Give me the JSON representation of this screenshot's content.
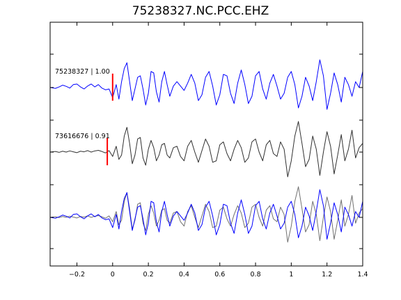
{
  "chart_data": {
    "type": "line",
    "title": "75238327.NC.PCC.EHZ",
    "xlabel": "",
    "ylabel": "",
    "xlim": [
      -0.35,
      1.4
    ],
    "ylim": [
      -3,
      3
    ],
    "grid": false,
    "x_ticks": [
      -0.2,
      0,
      0.2,
      0.4,
      0.6,
      0.8,
      1,
      1.2,
      1.4
    ],
    "x_tick_labels": [
      "−0.2",
      "0",
      "0.2",
      "0.4",
      "0.6",
      "0.8",
      "1",
      "1.2",
      "1.4"
    ],
    "trace_labels": [
      "75238327 | 1.00",
      "73616676 | 0.91"
    ],
    "pick_markers": [
      {
        "trace": 0,
        "x": 0.0,
        "color": "#ff0000"
      },
      {
        "trace": 1,
        "x": -0.03,
        "color": "#ff0000"
      }
    ],
    "series": [
      {
        "trace": 0,
        "color": "#0000ff",
        "x": [
          -0.35,
          -0.32,
          -0.3,
          -0.28,
          -0.26,
          -0.24,
          -0.22,
          -0.2,
          -0.18,
          -0.16,
          -0.14,
          -0.12,
          -0.1,
          -0.08,
          -0.06,
          -0.04,
          -0.02,
          0.0,
          0.02,
          0.035,
          0.05,
          0.065,
          0.08,
          0.095,
          0.11,
          0.125,
          0.14,
          0.155,
          0.17,
          0.185,
          0.2,
          0.215,
          0.23,
          0.245,
          0.26,
          0.275,
          0.29,
          0.305,
          0.32,
          0.34,
          0.36,
          0.38,
          0.4,
          0.42,
          0.44,
          0.46,
          0.48,
          0.5,
          0.52,
          0.54,
          0.56,
          0.58,
          0.6,
          0.62,
          0.64,
          0.66,
          0.68,
          0.7,
          0.72,
          0.74,
          0.76,
          0.78,
          0.8,
          0.82,
          0.84,
          0.86,
          0.88,
          0.9,
          0.92,
          0.94,
          0.96,
          0.98,
          1.0,
          1.02,
          1.04,
          1.06,
          1.08,
          1.1,
          1.12,
          1.14,
          1.16,
          1.18,
          1.2,
          1.22,
          1.24,
          1.26,
          1.28,
          1.3,
          1.32,
          1.34,
          1.36,
          1.38,
          1.4
        ],
        "y": [
          0,
          -0.03,
          0.02,
          0.08,
          0.04,
          -0.02,
          0.1,
          0.12,
          0.02,
          -0.05,
          0.05,
          0.12,
          0.02,
          0.1,
          -0.02,
          -0.08,
          -0.05,
          -0.35,
          0.1,
          -0.4,
          0.2,
          0.65,
          0.85,
          0.2,
          -0.45,
          -0.05,
          0.35,
          0.4,
          -0.05,
          -0.6,
          -0.2,
          0.55,
          0.5,
          -0.15,
          -0.5,
          0.2,
          0.55,
          0.1,
          -0.3,
          0.05,
          0.2,
          0.05,
          -0.1,
          0.15,
          0.45,
          0.15,
          -0.45,
          -0.25,
          0.35,
          0.55,
          0.05,
          -0.6,
          -0.25,
          0.45,
          0.4,
          -0.2,
          -0.55,
          0.15,
          0.6,
          0.1,
          -0.55,
          -0.3,
          0.4,
          0.55,
          -0.05,
          -0.4,
          0.15,
          0.45,
          0.05,
          -0.4,
          -0.2,
          0.35,
          0.55,
          0.1,
          -0.7,
          -0.3,
          0.35,
          0.05,
          -0.45,
          0.2,
          0.95,
          0.4,
          -0.75,
          -0.2,
          0.5,
          0.1,
          -0.5,
          0.35,
          0.1,
          -0.3,
          0.2,
          0.0,
          0.55
        ]
      },
      {
        "trace": 1,
        "color": "#303030",
        "x": [
          -0.35,
          -0.32,
          -0.3,
          -0.28,
          -0.26,
          -0.24,
          -0.22,
          -0.2,
          -0.18,
          -0.16,
          -0.14,
          -0.12,
          -0.1,
          -0.08,
          -0.06,
          -0.04,
          -0.02,
          0.0,
          0.02,
          0.035,
          0.05,
          0.065,
          0.08,
          0.095,
          0.11,
          0.125,
          0.14,
          0.155,
          0.17,
          0.185,
          0.2,
          0.215,
          0.23,
          0.245,
          0.26,
          0.275,
          0.29,
          0.305,
          0.32,
          0.34,
          0.36,
          0.38,
          0.4,
          0.42,
          0.44,
          0.46,
          0.48,
          0.5,
          0.52,
          0.54,
          0.56,
          0.58,
          0.6,
          0.62,
          0.64,
          0.66,
          0.68,
          0.7,
          0.72,
          0.74,
          0.76,
          0.78,
          0.8,
          0.82,
          0.84,
          0.86,
          0.88,
          0.9,
          0.92,
          0.94,
          0.96,
          0.98,
          1.0,
          1.02,
          1.04,
          1.06,
          1.08,
          1.1,
          1.12,
          1.14,
          1.16,
          1.18,
          1.2,
          1.22,
          1.24,
          1.26,
          1.28,
          1.3,
          1.32,
          1.34,
          1.36,
          1.38,
          1.4
        ],
        "y": [
          0,
          0.02,
          -0.01,
          0.03,
          0.0,
          0.04,
          0.01,
          -0.02,
          0.03,
          0.01,
          0.05,
          0.0,
          0.04,
          0.06,
          0.02,
          -0.03,
          0.05,
          -0.15,
          0.2,
          -0.25,
          -0.1,
          0.55,
          0.85,
          0.3,
          -0.4,
          -0.1,
          0.45,
          0.5,
          -0.2,
          -0.45,
          0.1,
          0.4,
          0.15,
          -0.3,
          -0.1,
          0.25,
          0.3,
          -0.1,
          -0.2,
          0.15,
          0.2,
          -0.15,
          -0.3,
          0.2,
          0.4,
          0.0,
          -0.35,
          0.05,
          0.45,
          0.2,
          -0.35,
          -0.3,
          0.25,
          0.35,
          -0.05,
          -0.3,
          0.1,
          0.4,
          0.15,
          -0.35,
          -0.2,
          0.35,
          0.45,
          0.0,
          -0.3,
          0.25,
          0.4,
          -0.05,
          -0.15,
          0.35,
          0.1,
          -0.85,
          -0.3,
          0.55,
          1.05,
          0.3,
          -0.5,
          -0.25,
          0.55,
          0.1,
          -0.8,
          0.0,
          0.7,
          0.2,
          -0.75,
          -0.1,
          0.6,
          -0.3,
          0.1,
          0.75,
          -0.2,
          0.15,
          0.3
        ]
      },
      {
        "trace": 2,
        "color": "#0000ff",
        "x": [
          -0.35,
          -0.32,
          -0.3,
          -0.28,
          -0.26,
          -0.24,
          -0.22,
          -0.2,
          -0.18,
          -0.16,
          -0.14,
          -0.12,
          -0.1,
          -0.08,
          -0.06,
          -0.04,
          -0.02,
          0.0,
          0.02,
          0.035,
          0.05,
          0.065,
          0.08,
          0.095,
          0.11,
          0.125,
          0.14,
          0.155,
          0.17,
          0.185,
          0.2,
          0.215,
          0.23,
          0.245,
          0.26,
          0.275,
          0.29,
          0.305,
          0.32,
          0.34,
          0.36,
          0.38,
          0.4,
          0.42,
          0.44,
          0.46,
          0.48,
          0.5,
          0.52,
          0.54,
          0.56,
          0.58,
          0.6,
          0.62,
          0.64,
          0.66,
          0.68,
          0.7,
          0.72,
          0.74,
          0.76,
          0.78,
          0.8,
          0.82,
          0.84,
          0.86,
          0.88,
          0.9,
          0.92,
          0.94,
          0.96,
          0.98,
          1.0,
          1.02,
          1.04,
          1.06,
          1.08,
          1.1,
          1.12,
          1.14,
          1.16,
          1.18,
          1.2,
          1.22,
          1.24,
          1.26,
          1.28,
          1.3,
          1.32,
          1.34,
          1.36,
          1.38,
          1.4
        ],
        "y": [
          0,
          -0.03,
          0.02,
          0.08,
          0.04,
          -0.02,
          0.1,
          0.12,
          0.02,
          -0.05,
          0.05,
          0.12,
          0.02,
          0.1,
          -0.02,
          -0.08,
          -0.05,
          -0.35,
          0.1,
          -0.4,
          0.2,
          0.65,
          0.85,
          0.2,
          -0.45,
          -0.05,
          0.35,
          0.4,
          -0.05,
          -0.6,
          -0.2,
          0.55,
          0.5,
          -0.15,
          -0.5,
          0.2,
          0.55,
          0.1,
          -0.3,
          0.05,
          0.2,
          0.05,
          -0.1,
          0.15,
          0.45,
          0.15,
          -0.45,
          -0.25,
          0.35,
          0.55,
          0.05,
          -0.6,
          -0.25,
          0.45,
          0.4,
          -0.2,
          -0.55,
          0.15,
          0.6,
          0.1,
          -0.55,
          -0.3,
          0.4,
          0.55,
          -0.05,
          -0.4,
          0.15,
          0.45,
          0.05,
          -0.4,
          -0.2,
          0.35,
          0.55,
          0.1,
          -0.7,
          -0.3,
          0.35,
          0.05,
          -0.45,
          0.2,
          0.95,
          0.4,
          -0.75,
          -0.2,
          0.5,
          0.1,
          -0.5,
          0.35,
          0.1,
          -0.3,
          0.2,
          0.0,
          0.55
        ]
      },
      {
        "trace": 2,
        "color": "#707070",
        "x": [
          -0.35,
          -0.32,
          -0.3,
          -0.28,
          -0.26,
          -0.24,
          -0.22,
          -0.2,
          -0.18,
          -0.16,
          -0.14,
          -0.12,
          -0.1,
          -0.08,
          -0.06,
          -0.04,
          -0.02,
          0.0,
          0.02,
          0.035,
          0.05,
          0.065,
          0.08,
          0.095,
          0.11,
          0.125,
          0.14,
          0.155,
          0.17,
          0.185,
          0.2,
          0.215,
          0.23,
          0.245,
          0.26,
          0.275,
          0.29,
          0.305,
          0.32,
          0.34,
          0.36,
          0.38,
          0.4,
          0.42,
          0.44,
          0.46,
          0.48,
          0.5,
          0.52,
          0.54,
          0.56,
          0.58,
          0.6,
          0.62,
          0.64,
          0.66,
          0.68,
          0.7,
          0.72,
          0.74,
          0.76,
          0.78,
          0.8,
          0.82,
          0.84,
          0.86,
          0.88,
          0.9,
          0.92,
          0.94,
          0.96,
          0.98,
          1.0,
          1.02,
          1.04,
          1.06,
          1.08,
          1.1,
          1.12,
          1.14,
          1.16,
          1.18,
          1.2,
          1.22,
          1.24,
          1.26,
          1.28,
          1.3,
          1.32,
          1.34,
          1.36,
          1.38,
          1.4
        ],
        "y": [
          0,
          0.02,
          -0.01,
          0.03,
          0.0,
          0.04,
          0.01,
          -0.02,
          0.03,
          0.01,
          0.05,
          0.0,
          0.04,
          0.06,
          0.02,
          -0.03,
          0.05,
          -0.15,
          0.2,
          -0.25,
          -0.1,
          0.55,
          0.85,
          0.3,
          -0.4,
          -0.1,
          0.45,
          0.5,
          -0.2,
          -0.45,
          0.1,
          0.4,
          0.15,
          -0.3,
          -0.1,
          0.25,
          0.3,
          -0.1,
          -0.2,
          0.15,
          0.2,
          -0.15,
          -0.3,
          0.2,
          0.4,
          0.0,
          -0.35,
          0.05,
          0.45,
          0.2,
          -0.35,
          -0.3,
          0.25,
          0.35,
          -0.05,
          -0.3,
          0.1,
          0.4,
          0.15,
          -0.35,
          -0.2,
          0.35,
          0.45,
          0.0,
          -0.3,
          0.25,
          0.4,
          -0.05,
          -0.15,
          0.35,
          0.1,
          -0.85,
          -0.3,
          0.55,
          1.05,
          0.3,
          -0.5,
          -0.25,
          0.55,
          0.1,
          -0.8,
          0.0,
          0.7,
          0.2,
          -0.75,
          -0.1,
          0.6,
          -0.3,
          0.1,
          0.75,
          -0.2,
          0.15,
          0.3
        ]
      }
    ]
  }
}
